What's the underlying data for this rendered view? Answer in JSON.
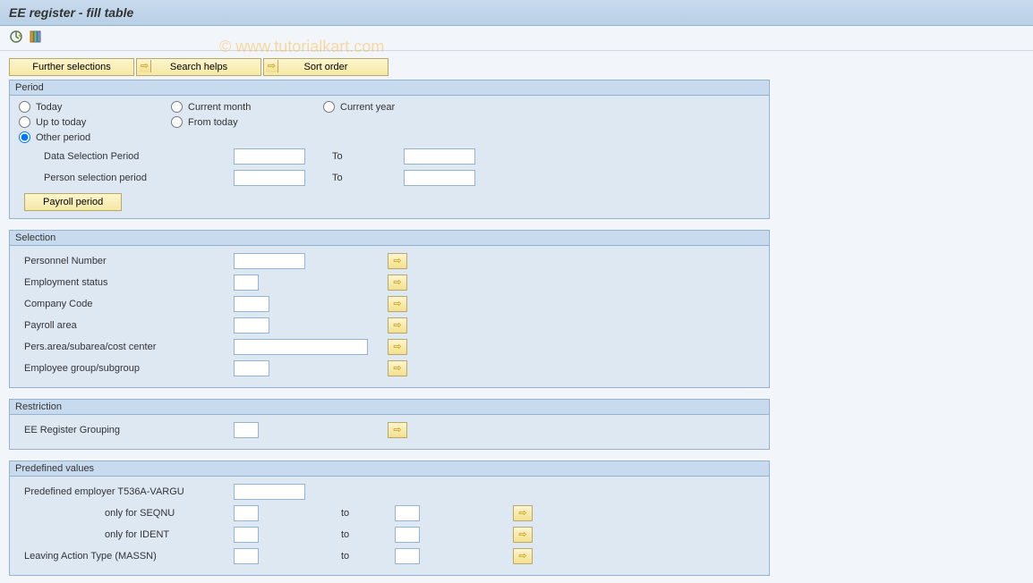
{
  "title": "EE register - fill table",
  "watermark": "© www.tutorialkart.com",
  "colors": {
    "titlebar_from": "#c8dbee",
    "titlebar_to": "#b8cfe5",
    "group_bg": "#dde8f3",
    "group_border": "#94b3d0",
    "btn_from": "#fdf5ce",
    "btn_to": "#f5e9a5",
    "btn_border": "#b8a968",
    "page_bg": "#f2f5f9"
  },
  "toolbar_icons": [
    "execute",
    "get-variant"
  ],
  "top_buttons": {
    "further_selections": "Further selections",
    "search_helps": "Search helps",
    "sort_order": "Sort order"
  },
  "period": {
    "title": "Period",
    "radios": {
      "today": "Today",
      "current_month": "Current month",
      "current_year": "Current year",
      "up_to_today": "Up to today",
      "from_today": "From today",
      "other_period": "Other period"
    },
    "selected_radio": "other_period",
    "data_selection_period": "Data Selection Period",
    "person_selection_period": "Person selection period",
    "to_label": "To",
    "payroll_period_btn": "Payroll period",
    "values": {
      "dsp_from": "",
      "dsp_to": "",
      "psp_from": "",
      "psp_to": ""
    }
  },
  "selection": {
    "title": "Selection",
    "rows": [
      {
        "label": "Personnel Number",
        "input_w": "w80"
      },
      {
        "label": "Employment status",
        "input_w": "w28"
      },
      {
        "label": "Company Code",
        "input_w": "w40"
      },
      {
        "label": "Payroll area",
        "input_w": "w40"
      },
      {
        "label": "Pers.area/subarea/cost center",
        "input_w": "w150"
      },
      {
        "label": "Employee group/subgroup",
        "input_w": "w40"
      }
    ]
  },
  "restriction": {
    "title": "Restriction",
    "label": "EE Register Grouping"
  },
  "predefined": {
    "title": "Predefined values",
    "employer": "Predefined employer T536A-VARGU",
    "seqnu": "only for SEQNU",
    "ident": "only for IDENT",
    "leaving": "Leaving Action Type (MASSN)",
    "to_label": "to"
  }
}
